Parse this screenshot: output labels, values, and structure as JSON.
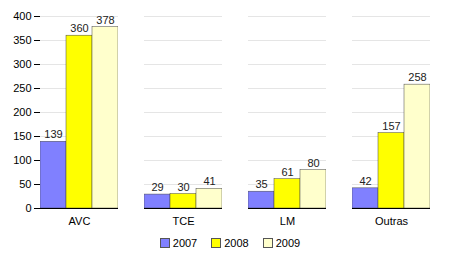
{
  "chart_data": {
    "type": "bar",
    "categories": [
      "AVC",
      "TCE",
      "LM",
      "Outras"
    ],
    "series": [
      {
        "name": "2007",
        "color": "#8080ff",
        "values": [
          139,
          29,
          35,
          42
        ]
      },
      {
        "name": "2008",
        "color": "#ffff00",
        "values": [
          360,
          30,
          61,
          157
        ]
      },
      {
        "name": "2009",
        "color": "#ffffcc",
        "values": [
          378,
          41,
          80,
          258
        ]
      }
    ],
    "ylim": [
      0,
      400
    ],
    "yticks": [
      0,
      50,
      100,
      150,
      200,
      250,
      300,
      350,
      400
    ],
    "grid": true,
    "legend": "bottom",
    "data_labels": true
  }
}
